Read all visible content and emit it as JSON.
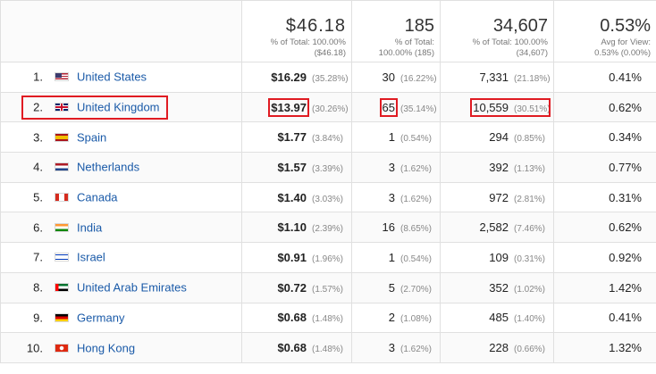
{
  "totals": {
    "revenue": "$46.18",
    "revenue_sub1": "% of Total: 100.00%",
    "revenue_sub2": "($46.18)",
    "transactions": "185",
    "transactions_sub1": "% of Total:",
    "transactions_sub2": "100.00% (185)",
    "quantity": "34,607",
    "quantity_sub1": "% of Total: 100.00%",
    "quantity_sub2": "(34,607)",
    "conversion": "0.53%",
    "conversion_sub1": "Avg for View:",
    "conversion_sub2": "0.53% (0.00%)"
  },
  "rows": [
    {
      "rank": "1.",
      "flag": "us-flag-icon",
      "country": "United States",
      "revenue": "$16.29",
      "revenue_pct": "(35.28%)",
      "transactions": "30",
      "transactions_pct": "(16.22%)",
      "quantity": "7,331",
      "quantity_pct": "(21.18%)",
      "conversion": "0.41%"
    },
    {
      "rank": "2.",
      "flag": "uk-flag-icon",
      "country": "United Kingdom",
      "revenue": "$13.97",
      "revenue_pct": "(30.26%)",
      "transactions": "65",
      "transactions_pct": "(35.14%)",
      "quantity": "10,559",
      "quantity_pct": "(30.51%)",
      "conversion": "0.62%"
    },
    {
      "rank": "3.",
      "flag": "es-flag-icon",
      "country": "Spain",
      "revenue": "$1.77",
      "revenue_pct": "(3.84%)",
      "transactions": "1",
      "transactions_pct": "(0.54%)",
      "quantity": "294",
      "quantity_pct": "(0.85%)",
      "conversion": "0.34%"
    },
    {
      "rank": "4.",
      "flag": "nl-flag-icon",
      "country": "Netherlands",
      "revenue": "$1.57",
      "revenue_pct": "(3.39%)",
      "transactions": "3",
      "transactions_pct": "(1.62%)",
      "quantity": "392",
      "quantity_pct": "(1.13%)",
      "conversion": "0.77%"
    },
    {
      "rank": "5.",
      "flag": "ca-flag-icon",
      "country": "Canada",
      "revenue": "$1.40",
      "revenue_pct": "(3.03%)",
      "transactions": "3",
      "transactions_pct": "(1.62%)",
      "quantity": "972",
      "quantity_pct": "(2.81%)",
      "conversion": "0.31%"
    },
    {
      "rank": "6.",
      "flag": "in-flag-icon",
      "country": "India",
      "revenue": "$1.10",
      "revenue_pct": "(2.39%)",
      "transactions": "16",
      "transactions_pct": "(8.65%)",
      "quantity": "2,582",
      "quantity_pct": "(7.46%)",
      "conversion": "0.62%"
    },
    {
      "rank": "7.",
      "flag": "il-flag-icon",
      "country": "Israel",
      "revenue": "$0.91",
      "revenue_pct": "(1.96%)",
      "transactions": "1",
      "transactions_pct": "(0.54%)",
      "quantity": "109",
      "quantity_pct": "(0.31%)",
      "conversion": "0.92%"
    },
    {
      "rank": "8.",
      "flag": "ae-flag-icon",
      "country": "United Arab Emirates",
      "revenue": "$0.72",
      "revenue_pct": "(1.57%)",
      "transactions": "5",
      "transactions_pct": "(2.70%)",
      "quantity": "352",
      "quantity_pct": "(1.02%)",
      "conversion": "1.42%"
    },
    {
      "rank": "9.",
      "flag": "de-flag-icon",
      "country": "Germany",
      "revenue": "$0.68",
      "revenue_pct": "(1.48%)",
      "transactions": "2",
      "transactions_pct": "(1.08%)",
      "quantity": "485",
      "quantity_pct": "(1.40%)",
      "conversion": "0.41%"
    },
    {
      "rank": "10.",
      "flag": "hk-flag-icon",
      "country": "Hong Kong",
      "revenue": "$0.68",
      "revenue_pct": "(1.48%)",
      "transactions": "3",
      "transactions_pct": "(1.62%)",
      "quantity": "228",
      "quantity_pct": "(0.66%)",
      "conversion": "1.32%"
    }
  ],
  "colors": {
    "link": "#1a5aa8",
    "highlight": "#e01b22",
    "border": "#e0e0e0"
  }
}
